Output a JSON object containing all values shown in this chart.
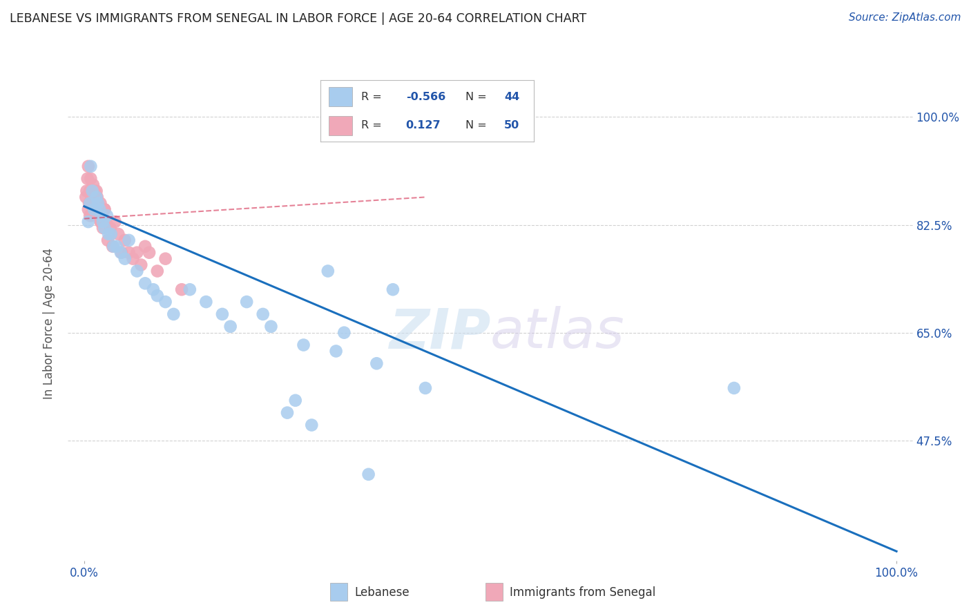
{
  "title": "LEBANESE VS IMMIGRANTS FROM SENEGAL IN LABOR FORCE | AGE 20-64 CORRELATION CHART",
  "source": "Source: ZipAtlas.com",
  "ylabel": "In Labor Force | Age 20-64",
  "y_ticks": [
    0.3,
    0.475,
    0.65,
    0.825,
    1.0
  ],
  "y_tick_labels_right": [
    "",
    "47.5%",
    "65.0%",
    "82.5%",
    "100.0%"
  ],
  "x_ticks": [
    0.0,
    0.2,
    0.4,
    0.6,
    0.8,
    1.0
  ],
  "x_tick_labels": [
    "0.0%",
    "",
    "",
    "",
    "",
    "100.0%"
  ],
  "blue_color": "#a8ccee",
  "pink_color": "#f0a8b8",
  "blue_line_color": "#1a6fbd",
  "pink_line_color": "#d84060",
  "text_color": "#2255aa",
  "title_color": "#222222",
  "source_color": "#2255aa",
  "background_color": "#ffffff",
  "grid_color": "#cccccc",
  "watermark_zip": "ZIP",
  "watermark_atlas": "atlas",
  "xlim": [
    -0.02,
    1.02
  ],
  "ylim": [
    0.28,
    1.05
  ],
  "blue_x": [
    0.005,
    0.007,
    0.008,
    0.01,
    0.012,
    0.015,
    0.017,
    0.019,
    0.021,
    0.023,
    0.025,
    0.028,
    0.03,
    0.033,
    0.036,
    0.04,
    0.045,
    0.05,
    0.055,
    0.065,
    0.075,
    0.085,
    0.09,
    0.1,
    0.11,
    0.13,
    0.15,
    0.17,
    0.2,
    0.23,
    0.27,
    0.31,
    0.36,
    0.42,
    0.3,
    0.38,
    0.22,
    0.26,
    0.18,
    0.8,
    0.25,
    0.35,
    0.32,
    0.28
  ],
  "blue_y": [
    0.83,
    0.86,
    0.92,
    0.88,
    0.85,
    0.87,
    0.86,
    0.85,
    0.84,
    0.83,
    0.82,
    0.84,
    0.81,
    0.81,
    0.79,
    0.79,
    0.78,
    0.77,
    0.8,
    0.75,
    0.73,
    0.72,
    0.71,
    0.7,
    0.68,
    0.72,
    0.7,
    0.68,
    0.7,
    0.66,
    0.63,
    0.62,
    0.6,
    0.56,
    0.75,
    0.72,
    0.68,
    0.54,
    0.66,
    0.56,
    0.52,
    0.42,
    0.65,
    0.5
  ],
  "pink_x": [
    0.002,
    0.003,
    0.004,
    0.005,
    0.005,
    0.006,
    0.007,
    0.007,
    0.008,
    0.008,
    0.009,
    0.009,
    0.01,
    0.01,
    0.011,
    0.011,
    0.012,
    0.013,
    0.014,
    0.015,
    0.015,
    0.016,
    0.016,
    0.017,
    0.018,
    0.019,
    0.02,
    0.021,
    0.022,
    0.023,
    0.025,
    0.027,
    0.029,
    0.032,
    0.035,
    0.038,
    0.042,
    0.046,
    0.05,
    0.055,
    0.06,
    0.065,
    0.07,
    0.075,
    0.08,
    0.09,
    0.1,
    0.12,
    0.02,
    0.025
  ],
  "pink_y": [
    0.87,
    0.88,
    0.9,
    0.85,
    0.92,
    0.86,
    0.84,
    0.88,
    0.86,
    0.9,
    0.87,
    0.84,
    0.88,
    0.86,
    0.87,
    0.89,
    0.86,
    0.88,
    0.85,
    0.88,
    0.86,
    0.87,
    0.84,
    0.86,
    0.85,
    0.84,
    0.86,
    0.83,
    0.84,
    0.82,
    0.85,
    0.83,
    0.8,
    0.82,
    0.79,
    0.83,
    0.81,
    0.78,
    0.8,
    0.78,
    0.77,
    0.78,
    0.76,
    0.79,
    0.78,
    0.75,
    0.77,
    0.72,
    0.83,
    0.85
  ],
  "blue_line_x0": 0.0,
  "blue_line_x1": 1.0,
  "blue_line_y0": 0.855,
  "blue_line_y1": 0.295,
  "pink_line_x0": 0.0,
  "pink_line_x1": 0.42,
  "pink_line_y0": 0.835,
  "pink_line_y1": 0.87
}
